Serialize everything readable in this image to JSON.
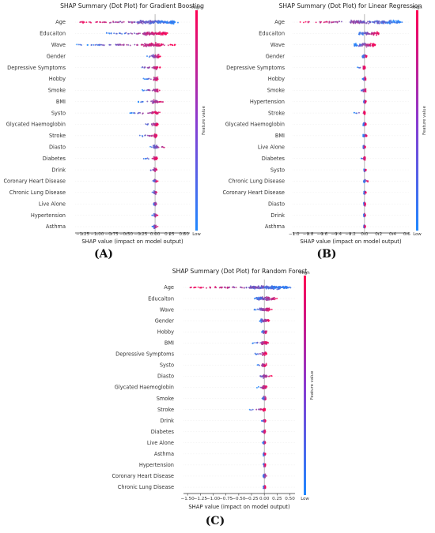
{
  "colors": {
    "low": "#1e88ff",
    "high": "#ff0052",
    "zero_line": "#999999"
  },
  "colorbar": {
    "high_label": "High",
    "low_label": "Low",
    "title": "Feature value"
  },
  "chart_data": [
    {
      "type": "scatter",
      "panel_label": "(A)",
      "title": "SHAP Summary (Dot Plot) for Gradient Boosting",
      "xlabel": "SHAP value (impact on model output)",
      "xlim": [
        -1.38,
        0.6
      ],
      "xticks": [
        -1.25,
        -1.0,
        -0.75,
        -0.5,
        -0.25,
        0.0,
        0.25,
        0.5
      ],
      "xtick_labels": [
        "−1.25",
        "−1.00",
        "−0.75",
        "−0.50",
        "−0.25",
        "0.00",
        "0.25",
        "0.50"
      ],
      "features": [
        {
          "name": "Age",
          "min": -1.3,
          "max": 0.4,
          "core": [
            -0.3,
            0.35
          ]
        },
        {
          "name": "Educaiton",
          "min": -0.85,
          "max": 0.22,
          "core": [
            -0.2,
            0.2
          ]
        },
        {
          "name": "Wave",
          "min": -1.35,
          "max": 0.35,
          "core": [
            -0.2,
            0.12
          ]
        },
        {
          "name": "Gender",
          "min": -0.15,
          "max": 0.1,
          "core": [
            -0.06,
            0.08
          ]
        },
        {
          "name": "Depressive Symptoms",
          "min": -0.3,
          "max": 0.1,
          "core": [
            -0.03,
            0.05
          ]
        },
        {
          "name": "Hobby",
          "min": -0.2,
          "max": 0.08,
          "core": [
            -0.03,
            0.05
          ]
        },
        {
          "name": "Smoke",
          "min": -0.25,
          "max": 0.1,
          "core": [
            -0.03,
            0.05
          ]
        },
        {
          "name": "BMI",
          "min": -0.3,
          "max": 0.2,
          "core": [
            -0.05,
            0.05
          ]
        },
        {
          "name": "Systo",
          "min": -0.45,
          "max": 0.1,
          "core": [
            -0.06,
            0.06
          ]
        },
        {
          "name": "Glycated Haemoglobin",
          "min": -0.2,
          "max": 0.08,
          "core": [
            -0.05,
            0.05
          ]
        },
        {
          "name": "Stroke",
          "min": -0.3,
          "max": 0.05,
          "core": [
            -0.02,
            0.03
          ]
        },
        {
          "name": "Diasto",
          "min": -0.1,
          "max": 0.2,
          "core": [
            -0.04,
            0.04
          ]
        },
        {
          "name": "Diabetes",
          "min": -0.2,
          "max": 0.05,
          "core": [
            -0.02,
            0.03
          ]
        },
        {
          "name": "Drink",
          "min": -0.1,
          "max": 0.05,
          "core": [
            -0.02,
            0.03
          ]
        },
        {
          "name": "Coronary Heart Disease",
          "min": -0.05,
          "max": 0.05,
          "core": [
            -0.02,
            0.02
          ]
        },
        {
          "name": "Chronic Lung Disease",
          "min": -0.05,
          "max": 0.05,
          "core": [
            -0.02,
            0.02
          ]
        },
        {
          "name": "Live Alone",
          "min": -0.05,
          "max": 0.05,
          "core": [
            -0.02,
            0.02
          ]
        },
        {
          "name": "Hypertension",
          "min": -0.05,
          "max": 0.05,
          "core": [
            -0.02,
            0.02
          ]
        },
        {
          "name": "Asthma",
          "min": -0.05,
          "max": 0.05,
          "core": [
            -0.02,
            0.02
          ]
        }
      ]
    },
    {
      "type": "scatter",
      "panel_label": "(B)",
      "title": "SHAP Summary (Dot Plot) for Linear Regression",
      "xlabel": "SHAP value (impact on model output)",
      "xlim": [
        -1.02,
        0.63
      ],
      "xticks": [
        -1.0,
        -0.8,
        -0.6,
        -0.4,
        -0.2,
        0.0,
        0.2,
        0.4,
        0.6
      ],
      "xtick_labels": [
        "−1.0",
        "−0.8",
        "−0.6",
        "−0.4",
        "−0.2",
        "0.0",
        "0.2",
        "0.4",
        "0.6"
      ],
      "features": [
        {
          "name": "Age",
          "min": -0.95,
          "max": 0.55,
          "core": [
            -0.2,
            0.5
          ]
        },
        {
          "name": "Educaiton",
          "min": -0.08,
          "max": 0.2,
          "core": [
            -0.08,
            0.2
          ]
        },
        {
          "name": "Wave",
          "min": -0.15,
          "max": 0.15,
          "core": [
            -0.15,
            0.15
          ]
        },
        {
          "name": "Gender",
          "min": -0.03,
          "max": 0.03,
          "core": [
            -0.03,
            0.03
          ]
        },
        {
          "name": "Depressive Symptoms",
          "min": -0.1,
          "max": 0.01,
          "core": [
            -0.02,
            0.01
          ]
        },
        {
          "name": "Hobby",
          "min": -0.03,
          "max": 0.02,
          "core": [
            -0.02,
            0.02
          ]
        },
        {
          "name": "Smoke",
          "min": -0.05,
          "max": 0.02,
          "core": [
            -0.02,
            0.02
          ]
        },
        {
          "name": "Hypertension",
          "min": -0.01,
          "max": 0.02,
          "core": [
            -0.01,
            0.02
          ]
        },
        {
          "name": "Stroke",
          "min": -0.15,
          "max": 0.01,
          "core": [
            -0.01,
            0.01
          ]
        },
        {
          "name": "Glycated Haemoglobin",
          "min": -0.02,
          "max": 0.02,
          "core": [
            -0.02,
            0.02
          ]
        },
        {
          "name": "BMI",
          "min": -0.02,
          "max": 0.03,
          "core": [
            -0.02,
            0.03
          ]
        },
        {
          "name": "Live Alone",
          "min": -0.02,
          "max": 0.01,
          "core": [
            -0.02,
            0.01
          ]
        },
        {
          "name": "Diabetes",
          "min": -0.05,
          "max": 0.01,
          "core": [
            -0.01,
            0.01
          ]
        },
        {
          "name": "Systo",
          "min": -0.01,
          "max": 0.02,
          "core": [
            -0.01,
            0.02
          ]
        },
        {
          "name": "Chronic Lung Disease",
          "min": -0.01,
          "max": 0.05,
          "core": [
            -0.01,
            0.01
          ]
        },
        {
          "name": "Coronary Heart Disease",
          "min": -0.01,
          "max": 0.02,
          "core": [
            -0.01,
            0.02
          ]
        },
        {
          "name": "Diasto",
          "min": -0.01,
          "max": 0.01,
          "core": [
            -0.01,
            0.01
          ]
        },
        {
          "name": "Drink",
          "min": -0.01,
          "max": 0.01,
          "core": [
            -0.01,
            0.01
          ]
        },
        {
          "name": "Asthma",
          "min": -0.01,
          "max": 0.01,
          "core": [
            -0.01,
            0.01
          ]
        }
      ]
    },
    {
      "type": "scatter",
      "panel_label": "(C)",
      "title": "SHAP Summary (Dot Plot) for Random Forest",
      "xlabel": "SHAP value (impact on model output)",
      "xlim": [
        -1.58,
        0.6
      ],
      "xticks": [
        -1.5,
        -1.25,
        -1.0,
        -0.75,
        -0.5,
        -0.25,
        0.0,
        0.25,
        0.5
      ],
      "xtick_labels": [
        "−1.50",
        "−1.25",
        "−1.00",
        "−0.75",
        "−0.50",
        "−0.25",
        "0.00",
        "0.25",
        "0.50"
      ],
      "features": [
        {
          "name": "Age",
          "min": -1.5,
          "max": 0.55,
          "core": [
            -0.3,
            0.45
          ]
        },
        {
          "name": "Educaiton",
          "min": -0.2,
          "max": 0.25,
          "core": [
            -0.15,
            0.2
          ]
        },
        {
          "name": "Wave",
          "min": -0.2,
          "max": 0.15,
          "core": [
            -0.1,
            0.1
          ]
        },
        {
          "name": "Gender",
          "min": -0.1,
          "max": 0.1,
          "core": [
            -0.08,
            0.08
          ]
        },
        {
          "name": "Hobby",
          "min": -0.05,
          "max": 0.05,
          "core": [
            -0.03,
            0.04
          ]
        },
        {
          "name": "BMI",
          "min": -0.25,
          "max": 0.1,
          "core": [
            -0.05,
            0.05
          ]
        },
        {
          "name": "Depressive Symptoms",
          "min": -0.2,
          "max": 0.05,
          "core": [
            -0.04,
            0.04
          ]
        },
        {
          "name": "Systo",
          "min": -0.15,
          "max": 0.05,
          "core": [
            -0.04,
            0.04
          ]
        },
        {
          "name": "Diasto",
          "min": -0.15,
          "max": 0.15,
          "core": [
            -0.04,
            0.04
          ]
        },
        {
          "name": "Glycated Haemoglobin",
          "min": -0.15,
          "max": 0.05,
          "core": [
            -0.04,
            0.04
          ]
        },
        {
          "name": "Smoke",
          "min": -0.05,
          "max": 0.05,
          "core": [
            -0.03,
            0.03
          ]
        },
        {
          "name": "Stroke",
          "min": -0.3,
          "max": 0.02,
          "core": [
            -0.02,
            0.02
          ]
        },
        {
          "name": "Drink",
          "min": -0.05,
          "max": 0.03,
          "core": [
            -0.02,
            0.02
          ]
        },
        {
          "name": "Diabetes",
          "min": -0.05,
          "max": 0.02,
          "core": [
            -0.02,
            0.02
          ]
        },
        {
          "name": "Live Alone",
          "min": -0.03,
          "max": 0.02,
          "core": [
            -0.02,
            0.02
          ]
        },
        {
          "name": "Asthma",
          "min": -0.02,
          "max": 0.02,
          "core": [
            -0.02,
            0.02
          ]
        },
        {
          "name": "Hypertension",
          "min": -0.02,
          "max": 0.02,
          "core": [
            -0.02,
            0.02
          ]
        },
        {
          "name": "Coronary Heart Disease",
          "min": -0.03,
          "max": 0.05,
          "core": [
            -0.02,
            0.02
          ]
        },
        {
          "name": "Chronic Lung Disease",
          "min": -0.02,
          "max": 0.02,
          "core": [
            -0.02,
            0.02
          ]
        }
      ]
    }
  ]
}
